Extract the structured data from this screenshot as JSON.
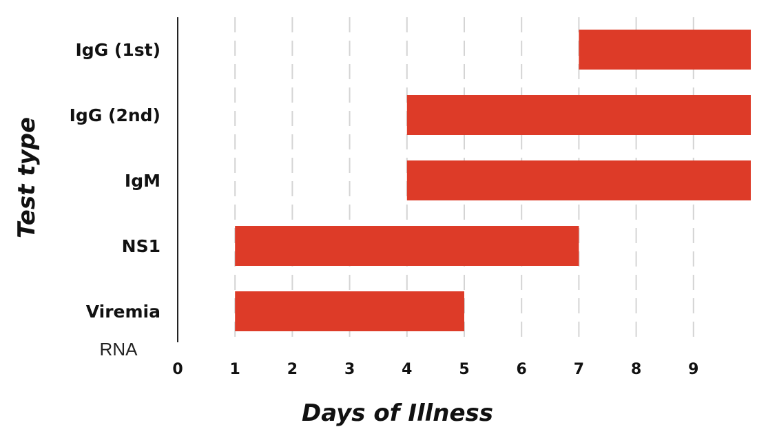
{
  "chart_data": {
    "type": "bar",
    "orientation": "horizontal",
    "categories": [
      "IgG (1st)",
      "IgG (2nd)",
      "IgM",
      "NS1",
      "Viremia"
    ],
    "series": [
      {
        "ranges": [
          [
            7,
            10
          ],
          [
            4,
            10
          ],
          [
            4,
            10
          ],
          [
            1,
            7
          ],
          [
            1,
            5
          ]
        ]
      }
    ],
    "xlabel": "Days of Illness",
    "ylabel": "Test type",
    "x_ticks": [
      "0",
      "1",
      "2",
      "3",
      "4",
      "5",
      "6",
      "7",
      "8",
      "9"
    ],
    "xlim": [
      0,
      10
    ],
    "grid": "vertical dashed",
    "note": "RNA",
    "bar_color": "#dd3b28",
    "grid_color": "#d4d4d4",
    "axis_color": "#222222"
  }
}
